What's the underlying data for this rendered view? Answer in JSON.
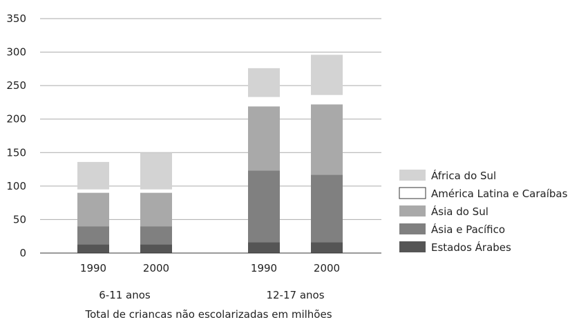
{
  "chart_data": {
    "type": "bar",
    "stacked": true,
    "groups": [
      {
        "label": "6-11 anos",
        "categories": [
          "1990",
          "2000"
        ]
      },
      {
        "label": "12-17 anos",
        "categories": [
          "1990",
          "2000"
        ]
      }
    ],
    "series": [
      {
        "name": "Estados Árabes",
        "color": "#555555",
        "values": [
          13,
          13,
          16,
          16
        ]
      },
      {
        "name": "Ásia e Pacífico",
        "color": "#808080",
        "values": [
          27,
          27,
          107,
          101
        ]
      },
      {
        "name": "Ásia do Sul",
        "color": "#a9a9a9",
        "values": [
          50,
          50,
          96,
          105
        ]
      },
      {
        "name": "América Latina e Caraíbas",
        "color": "#ffffff",
        "values": [
          5,
          5,
          14,
          14
        ]
      },
      {
        "name": "África do Sul",
        "color": "#d3d3d3",
        "values": [
          41,
          55,
          43,
          60
        ]
      }
    ],
    "legend_order": [
      "África do Sul",
      "América Latina e Caraíbas",
      "Ásia do Sul",
      "Ásia e Pacífico",
      "Estados Árabes"
    ],
    "yticks": [
      "0",
      "50",
      "100",
      "150",
      "200",
      "250",
      "300",
      "350"
    ],
    "ylim": [
      0,
      350
    ],
    "grid": true,
    "legend_position": "right",
    "caption": "Total de criancas não escolarizadas em milhões"
  }
}
